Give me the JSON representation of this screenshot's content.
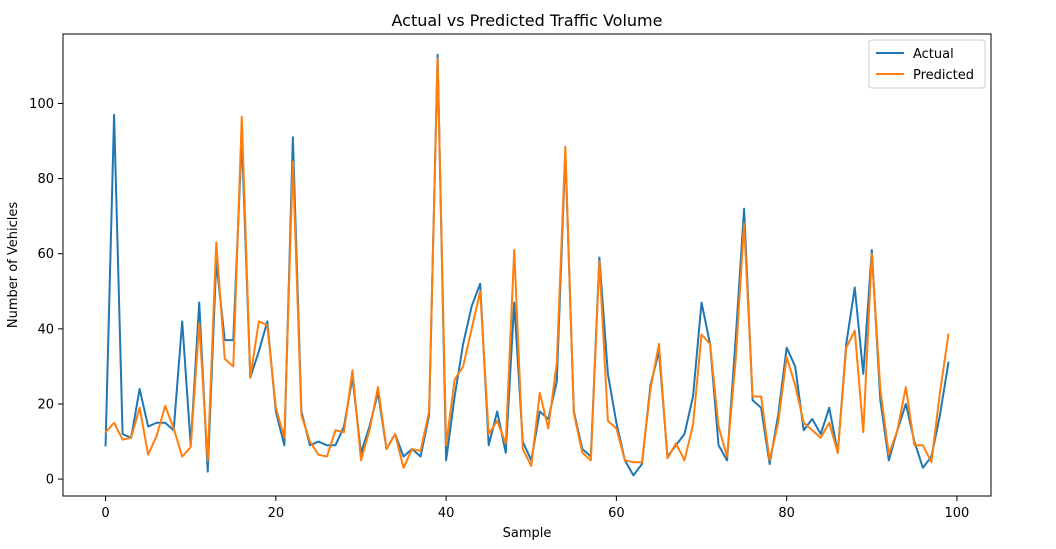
{
  "chart_data": {
    "type": "line",
    "title": "Actual vs Predicted Traffic Volume",
    "xlabel": "Sample",
    "ylabel": "Number of Vehicles",
    "xlim": [
      -5,
      104
    ],
    "ylim": [
      -4.5,
      118.5
    ],
    "xticks": [
      0,
      20,
      40,
      60,
      80,
      100
    ],
    "yticks": [
      0,
      20,
      40,
      60,
      80,
      100
    ],
    "grid": false,
    "legend_position": "top-right",
    "series": [
      {
        "name": "Actual",
        "color": "#1f77b4",
        "values": [
          9,
          97,
          12,
          11,
          24,
          14,
          15,
          15,
          13,
          42,
          9,
          47,
          2,
          58,
          37,
          37,
          91,
          27,
          34,
          42,
          18,
          9,
          91,
          18,
          9,
          10,
          9,
          9,
          14,
          27,
          7,
          14,
          23,
          8,
          12,
          6,
          8,
          6,
          17,
          113,
          5,
          22,
          36,
          46,
          52,
          9,
          18,
          7,
          47,
          10,
          5,
          18,
          16,
          26,
          87,
          18,
          8,
          6,
          59,
          28,
          15,
          5,
          1,
          4,
          25,
          34,
          6,
          9,
          12,
          22,
          47,
          36,
          9,
          5,
          37,
          72,
          21,
          19,
          4,
          17,
          35,
          30,
          13,
          16,
          12,
          19,
          7,
          36,
          51,
          28,
          61,
          21,
          5,
          13,
          20,
          10,
          3,
          6,
          17,
          31
        ]
      },
      {
        "name": "Predicted",
        "color": "#ff7f0e",
        "values": [
          12.5,
          15,
          10.5,
          11,
          19,
          6.5,
          11.5,
          19.5,
          13.5,
          6,
          8.5,
          41.5,
          5,
          63,
          32,
          30,
          96.5,
          27,
          42,
          41,
          19,
          11,
          84.5,
          17,
          10,
          6.5,
          6,
          13,
          12.5,
          29,
          5,
          13,
          24.5,
          8,
          12,
          3,
          8,
          7.5,
          18,
          112,
          9,
          26.5,
          30,
          40,
          50,
          12,
          15.5,
          9.5,
          61,
          8,
          3.5,
          23,
          13.5,
          31,
          88.5,
          17.5,
          7,
          5,
          58,
          15.5,
          13.5,
          5,
          4.5,
          4.5,
          24,
          36,
          5.5,
          9.5,
          5,
          14.5,
          38.5,
          36,
          14,
          6,
          31.5,
          68,
          22,
          22,
          5,
          15,
          32.5,
          25,
          15,
          13,
          11,
          15,
          7,
          35,
          39.5,
          12.5,
          60,
          24,
          6.5,
          13,
          24.5,
          9,
          9,
          4.5,
          23,
          38.5
        ]
      }
    ]
  }
}
